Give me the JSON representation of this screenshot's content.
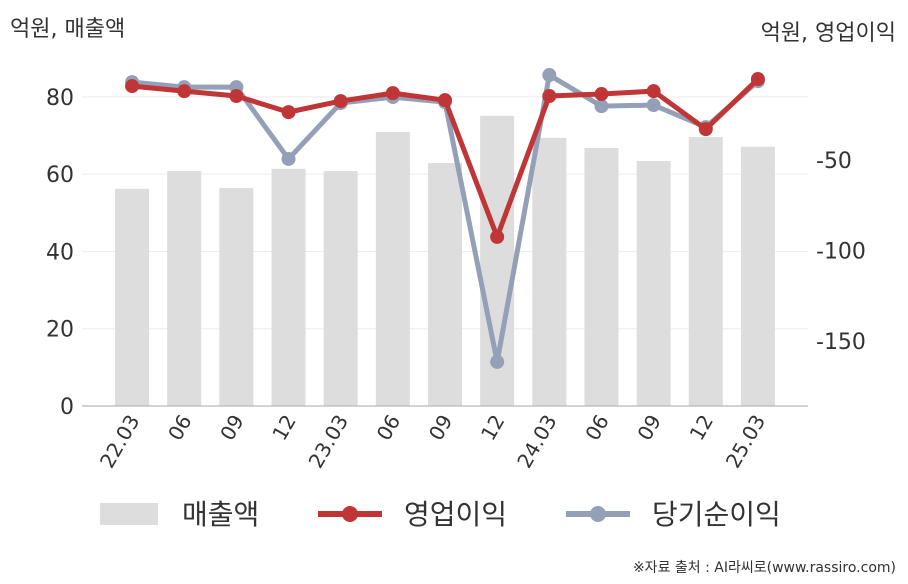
{
  "chart_data": {
    "type": "bar_line",
    "y_label": "억원, 매출액",
    "y2_label": "억원, 영업이익",
    "categories": [
      "22.03",
      "06",
      "09",
      "12",
      "23.03",
      "06",
      "09",
      "12",
      "24.03",
      "06",
      "09",
      "12",
      "25.03"
    ],
    "series": [
      {
        "name": "매출액",
        "type": "bar",
        "color": "#dddddd",
        "values": [
          56.2,
          60.8,
          56.4,
          61.4,
          60.8,
          70.9,
          62.9,
          75.1,
          69.4,
          66.8,
          63.4,
          69.6,
          67.1
        ]
      },
      {
        "name": "영업이익",
        "type": "line",
        "axis": "y2",
        "color": "#c03535",
        "values": [
          -9.1,
          -11.9,
          -14.6,
          -23.5,
          -17.4,
          -13.0,
          -16.9,
          -92.5,
          -14.6,
          -13.5,
          -11.9,
          -32.9,
          -5.2
        ]
      },
      {
        "name": "당기순이익",
        "type": "line",
        "axis": "y2",
        "color": "#93a0b8",
        "values": [
          -6.9,
          -9.7,
          -9.7,
          -49.4,
          -18.5,
          -15.2,
          -18.0,
          -161.6,
          -3.0,
          -20.2,
          -19.6,
          -31.8,
          -6.4
        ]
      }
    ],
    "ylim": [
      0,
      88
    ],
    "yticks": [
      0,
      20,
      40,
      60,
      80
    ],
    "y2lim": [
      -186,
      2
    ],
    "y2ticks": [
      -50,
      -100,
      -150
    ],
    "grid": true,
    "source": "※자료 출처 : AI라씨로(www.rassiro.com)"
  }
}
